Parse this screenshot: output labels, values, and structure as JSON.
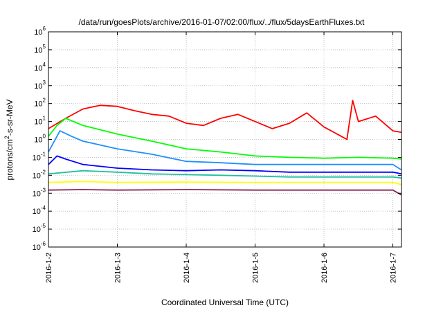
{
  "chart_data": {
    "type": "line",
    "title": "/data/run/goesPlots/archive/2016-01-07/02:00/flux/../flux/5daysEarthFluxes.txt",
    "xlabel": "Coordinated Universal Time (UTC)",
    "ylabel": "protons/cm2-s-sr-MeV",
    "yscale": "log",
    "ylim": [
      1e-06,
      1000000.0
    ],
    "xlim": [
      "2016-01-02",
      "2016-01-07 03:00"
    ],
    "x_ticks": [
      "2016-1-2",
      "2016-1-3",
      "2016-1-4",
      "2016-1-5",
      "2016-1-6",
      "2016-1-7"
    ],
    "y_ticks": [
      {
        "base": "10",
        "exp": "6"
      },
      {
        "base": "10",
        "exp": "5"
      },
      {
        "base": "10",
        "exp": "4"
      },
      {
        "base": "10",
        "exp": "3"
      },
      {
        "base": "10",
        "exp": "2"
      },
      {
        "base": "10",
        "exp": "1"
      },
      {
        "base": "10",
        "exp": "0"
      },
      {
        "base": "10",
        "exp": "-1"
      },
      {
        "base": "10",
        "exp": "-2"
      },
      {
        "base": "10",
        "exp": "-3"
      },
      {
        "base": "10",
        "exp": "-4"
      },
      {
        "base": "10",
        "exp": "-5"
      },
      {
        "base": "10",
        "exp": "-6"
      }
    ],
    "grid": true,
    "series": [
      {
        "color": "#ff0000",
        "x": [
          "2016-01-02 00:00",
          "2016-01-02 06:00",
          "2016-01-02 12:00",
          "2016-01-02 18:00",
          "2016-01-03 00:00",
          "2016-01-03 06:00",
          "2016-01-03 12:00",
          "2016-01-03 18:00",
          "2016-01-04 00:00",
          "2016-01-04 06:00",
          "2016-01-04 12:00",
          "2016-01-04 18:00",
          "2016-01-05 00:00",
          "2016-01-05 06:00",
          "2016-01-05 12:00",
          "2016-01-05 18:00",
          "2016-01-06 00:00",
          "2016-01-06 06:00",
          "2016-01-06 08:00",
          "2016-01-06 10:00",
          "2016-01-06 12:00",
          "2016-01-06 18:00",
          "2016-01-07 00:00",
          "2016-01-07 03:00"
        ],
        "values": [
          4,
          15,
          50,
          80,
          70,
          40,
          25,
          20,
          8,
          6,
          15,
          25,
          10,
          4,
          8,
          30,
          5,
          1.5,
          1,
          150,
          10,
          20,
          3,
          2.5
        ]
      },
      {
        "color": "#00ff00",
        "x": [
          "2016-01-02 00:00",
          "2016-01-02 03:00",
          "2016-01-02 06:00",
          "2016-01-02 12:00",
          "2016-01-03 00:00",
          "2016-01-03 12:00",
          "2016-01-04 00:00",
          "2016-01-04 12:00",
          "2016-01-05 00:00",
          "2016-01-05 12:00",
          "2016-01-06 00:00",
          "2016-01-06 12:00",
          "2016-01-07 00:00",
          "2016-01-07 03:00"
        ],
        "values": [
          1.5,
          6,
          15,
          6,
          2,
          0.8,
          0.3,
          0.2,
          0.12,
          0.1,
          0.09,
          0.1,
          0.09,
          0.08
        ]
      },
      {
        "color": "#1e8fff",
        "x": [
          "2016-01-02 00:00",
          "2016-01-02 04:00",
          "2016-01-02 08:00",
          "2016-01-02 12:00",
          "2016-01-03 00:00",
          "2016-01-03 12:00",
          "2016-01-04 00:00",
          "2016-01-04 12:00",
          "2016-01-05 00:00",
          "2016-01-05 12:00",
          "2016-01-06 00:00",
          "2016-01-06 12:00",
          "2016-01-07 00:00",
          "2016-01-07 03:00"
        ],
        "values": [
          0.2,
          3,
          1.5,
          0.8,
          0.3,
          0.15,
          0.06,
          0.05,
          0.04,
          0.04,
          0.04,
          0.04,
          0.04,
          0.02
        ]
      },
      {
        "color": "#0000ff",
        "x": [
          "2016-01-02 00:00",
          "2016-01-02 03:00",
          "2016-01-02 06:00",
          "2016-01-02 12:00",
          "2016-01-03 00:00",
          "2016-01-03 12:00",
          "2016-01-04 00:00",
          "2016-01-04 12:00",
          "2016-01-05 00:00",
          "2016-01-05 12:00",
          "2016-01-06 00:00",
          "2016-01-06 12:00",
          "2016-01-07 00:00",
          "2016-01-07 03:00"
        ],
        "values": [
          0.04,
          0.12,
          0.08,
          0.04,
          0.025,
          0.02,
          0.018,
          0.02,
          0.018,
          0.015,
          0.015,
          0.015,
          0.015,
          0.012
        ]
      },
      {
        "color": "#20c0a0",
        "x": [
          "2016-01-02 00:00",
          "2016-01-02 12:00",
          "2016-01-03 00:00",
          "2016-01-03 12:00",
          "2016-01-04 00:00",
          "2016-01-04 12:00",
          "2016-01-05 00:00",
          "2016-01-05 12:00",
          "2016-01-06 00:00",
          "2016-01-06 12:00",
          "2016-01-07 00:00",
          "2016-01-07 03:00"
        ],
        "values": [
          0.012,
          0.018,
          0.015,
          0.012,
          0.011,
          0.01,
          0.009,
          0.008,
          0.008,
          0.008,
          0.008,
          0.007
        ]
      },
      {
        "color": "#ffff00",
        "x": [
          "2016-01-02 00:00",
          "2016-01-02 12:00",
          "2016-01-03 00:00",
          "2016-01-04 00:00",
          "2016-01-05 00:00",
          "2016-01-06 00:00",
          "2016-01-07 00:00",
          "2016-01-07 03:00"
        ],
        "values": [
          0.004,
          0.0045,
          0.004,
          0.0042,
          0.004,
          0.004,
          0.004,
          0.003
        ]
      },
      {
        "color": "#8b2252",
        "x": [
          "2016-01-02 00:00",
          "2016-01-02 12:00",
          "2016-01-03 00:00",
          "2016-01-04 00:00",
          "2016-01-05 00:00",
          "2016-01-06 00:00",
          "2016-01-07 00:00",
          "2016-01-07 03:00"
        ],
        "values": [
          0.0015,
          0.0016,
          0.0015,
          0.0016,
          0.0015,
          0.0015,
          0.0015,
          0.0008
        ]
      }
    ]
  }
}
